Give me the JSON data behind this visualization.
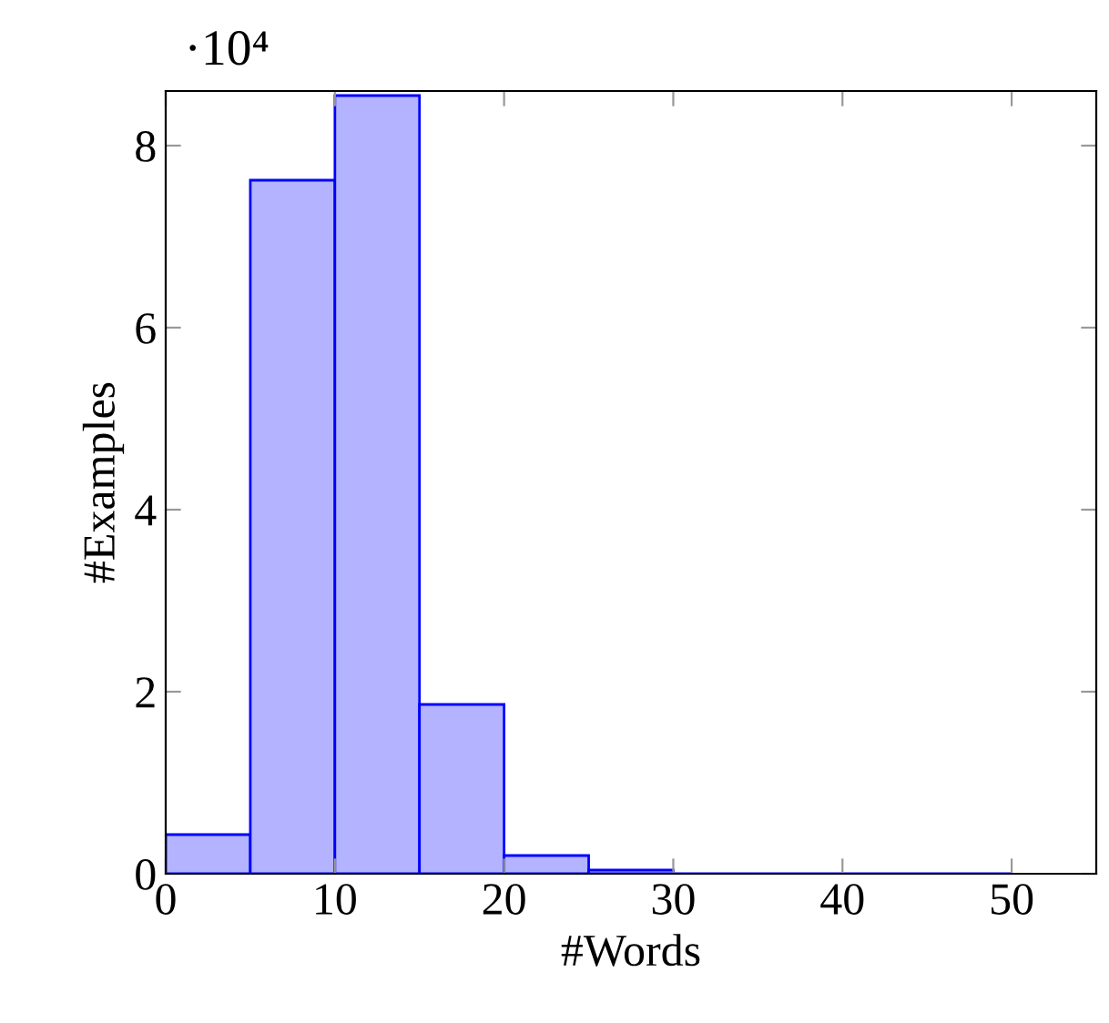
{
  "chart_data": {
    "type": "histogram",
    "xlabel": "#Words",
    "ylabel": "#Examples",
    "annotations": [
      "·10⁴"
    ],
    "bins": [
      0,
      5,
      10,
      15,
      20,
      25,
      30,
      35,
      40,
      45,
      50
    ],
    "values": [
      0.43,
      7.62,
      8.55,
      1.86,
      0.2,
      0.04,
      0,
      0,
      0,
      0
    ],
    "color": "#b3b3ff",
    "xlim": [
      0,
      55
    ],
    "ylim": [
      0,
      8.6
    ],
    "xticks": [
      0,
      10,
      20,
      30,
      40,
      50
    ],
    "yticks": [
      0,
      2,
      4,
      6,
      8
    ],
    "grid": false
  }
}
